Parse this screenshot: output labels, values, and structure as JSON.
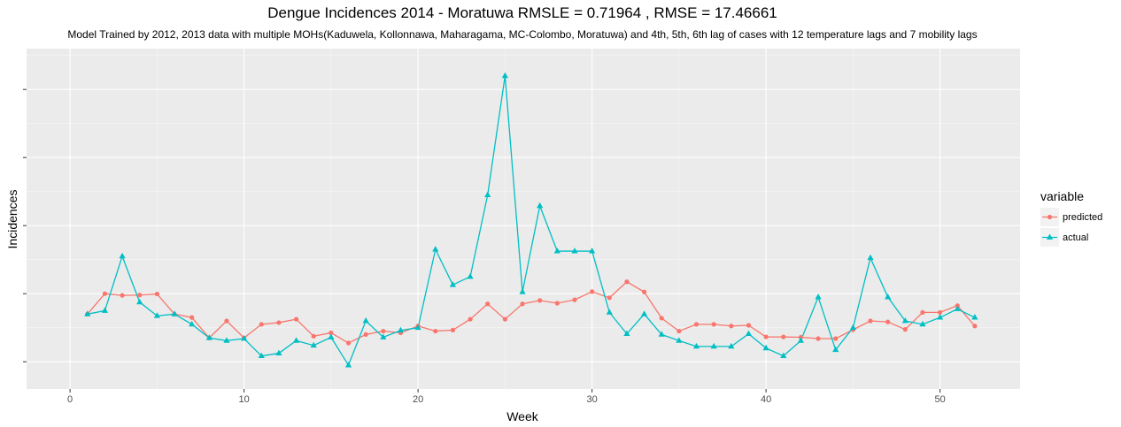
{
  "chart_data": {
    "type": "line",
    "title": "Dengue Incidences 2014 -  Moratuwa  RMSLE =  0.71964 , RMSE =  17.46661",
    "subtitle": "Model Trained by 2012, 2013 data with multiple MOHs(Kaduwela, Kollonnawa, Maharagama, MC-Colombo, Moratuwa) and 4th, 5th, 6th lag of cases with 12 temperature lags and 7 mobility lags",
    "xlabel": "Week",
    "ylabel": "Incidences",
    "xlim": [
      -2.5,
      54.6
    ],
    "x_ticks": [
      0,
      10,
      20,
      30,
      40,
      50
    ],
    "x_tick_labels": [
      "0",
      "10",
      "20",
      "30",
      "40",
      "50"
    ],
    "ylim": [
      1.2,
      11.2
    ],
    "y_ticks": [
      2,
      4,
      6,
      8,
      10
    ],
    "y_tick_labels": [
      "",
      "",
      "",
      "",
      ""
    ],
    "grid": true,
    "legend_title": "variable",
    "legend_position": "right",
    "x": [
      1,
      2,
      3,
      4,
      5,
      6,
      7,
      8,
      9,
      10,
      11,
      12,
      13,
      14,
      15,
      16,
      17,
      18,
      19,
      20,
      21,
      22,
      23,
      24,
      25,
      26,
      27,
      28,
      29,
      30,
      31,
      32,
      33,
      34,
      35,
      36,
      37,
      38,
      39,
      40,
      41,
      42,
      43,
      44,
      45,
      46,
      47,
      48,
      49,
      50,
      51,
      52
    ],
    "series": [
      {
        "name": "predicted",
        "color": "#F8766D",
        "marker": "circle",
        "values": [
          3.4,
          4.0,
          3.95,
          3.96,
          3.99,
          3.4,
          3.3,
          2.7,
          3.2,
          2.7,
          3.1,
          3.15,
          3.25,
          2.75,
          2.85,
          2.55,
          2.8,
          2.9,
          2.85,
          3.05,
          2.9,
          2.93,
          3.25,
          3.7,
          3.25,
          3.7,
          3.8,
          3.72,
          3.82,
          4.06,
          3.88,
          4.35,
          4.05,
          3.28,
          2.9,
          3.1,
          3.1,
          3.05,
          3.07,
          2.73,
          2.73,
          2.72,
          2.68,
          2.68,
          2.94,
          3.2,
          3.17,
          2.95,
          3.45,
          3.45,
          3.65,
          3.05
        ]
      },
      {
        "name": "actual",
        "color": "#00BFC4",
        "marker": "triangle",
        "values": [
          3.4,
          3.5,
          5.1,
          3.75,
          3.35,
          3.4,
          3.1,
          2.7,
          2.62,
          2.68,
          2.17,
          2.25,
          2.62,
          2.48,
          2.72,
          1.9,
          3.2,
          2.72,
          2.92,
          3.0,
          5.3,
          4.26,
          4.5,
          6.9,
          10.4,
          4.05,
          6.58,
          5.25,
          5.25,
          5.25,
          3.45,
          2.82,
          3.4,
          2.8,
          2.62,
          2.45,
          2.45,
          2.45,
          2.82,
          2.4,
          2.17,
          2.62,
          3.9,
          2.35,
          3.0,
          5.05,
          3.9,
          3.2,
          3.1,
          3.3,
          3.55,
          3.3
        ]
      }
    ]
  }
}
